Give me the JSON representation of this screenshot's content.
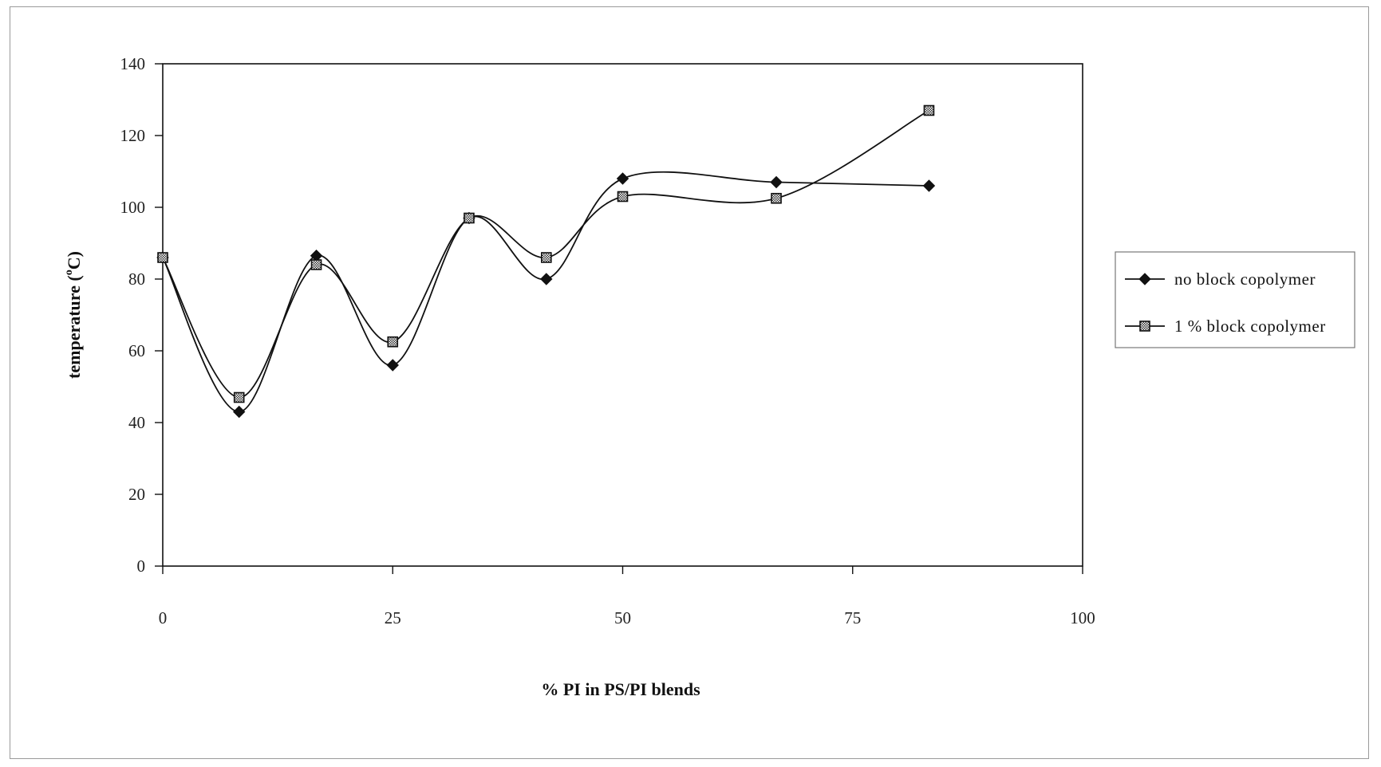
{
  "chart_data": {
    "type": "line",
    "title": "",
    "xlabel": "% PI in PS/PI blends",
    "ylabel_main": "temperature (",
    "ylabel_sup": "o",
    "ylabel_end": "C)",
    "xlim": [
      0,
      100
    ],
    "ylim": [
      0,
      140
    ],
    "x_ticks": [
      0,
      25,
      50,
      75,
      100
    ],
    "y_ticks": [
      0,
      20,
      40,
      60,
      80,
      100,
      120,
      140
    ],
    "grid": false,
    "legend_position": "right",
    "smooth": true,
    "series": [
      {
        "name": "no block copolymer",
        "marker": "diamond",
        "x": [
          0,
          8.3,
          16.7,
          25,
          33.3,
          41.7,
          50,
          66.7,
          83.3
        ],
        "y": [
          86,
          43,
          86.5,
          56,
          97,
          80,
          108,
          107,
          106
        ]
      },
      {
        "name": "1 % block copolymer",
        "marker": "square-hatched",
        "x": [
          0,
          8.3,
          16.7,
          25,
          33.3,
          41.7,
          50,
          66.7,
          83.3
        ],
        "y": [
          86,
          47,
          84,
          62.5,
          97,
          86,
          103,
          102.5,
          127
        ]
      }
    ]
  }
}
